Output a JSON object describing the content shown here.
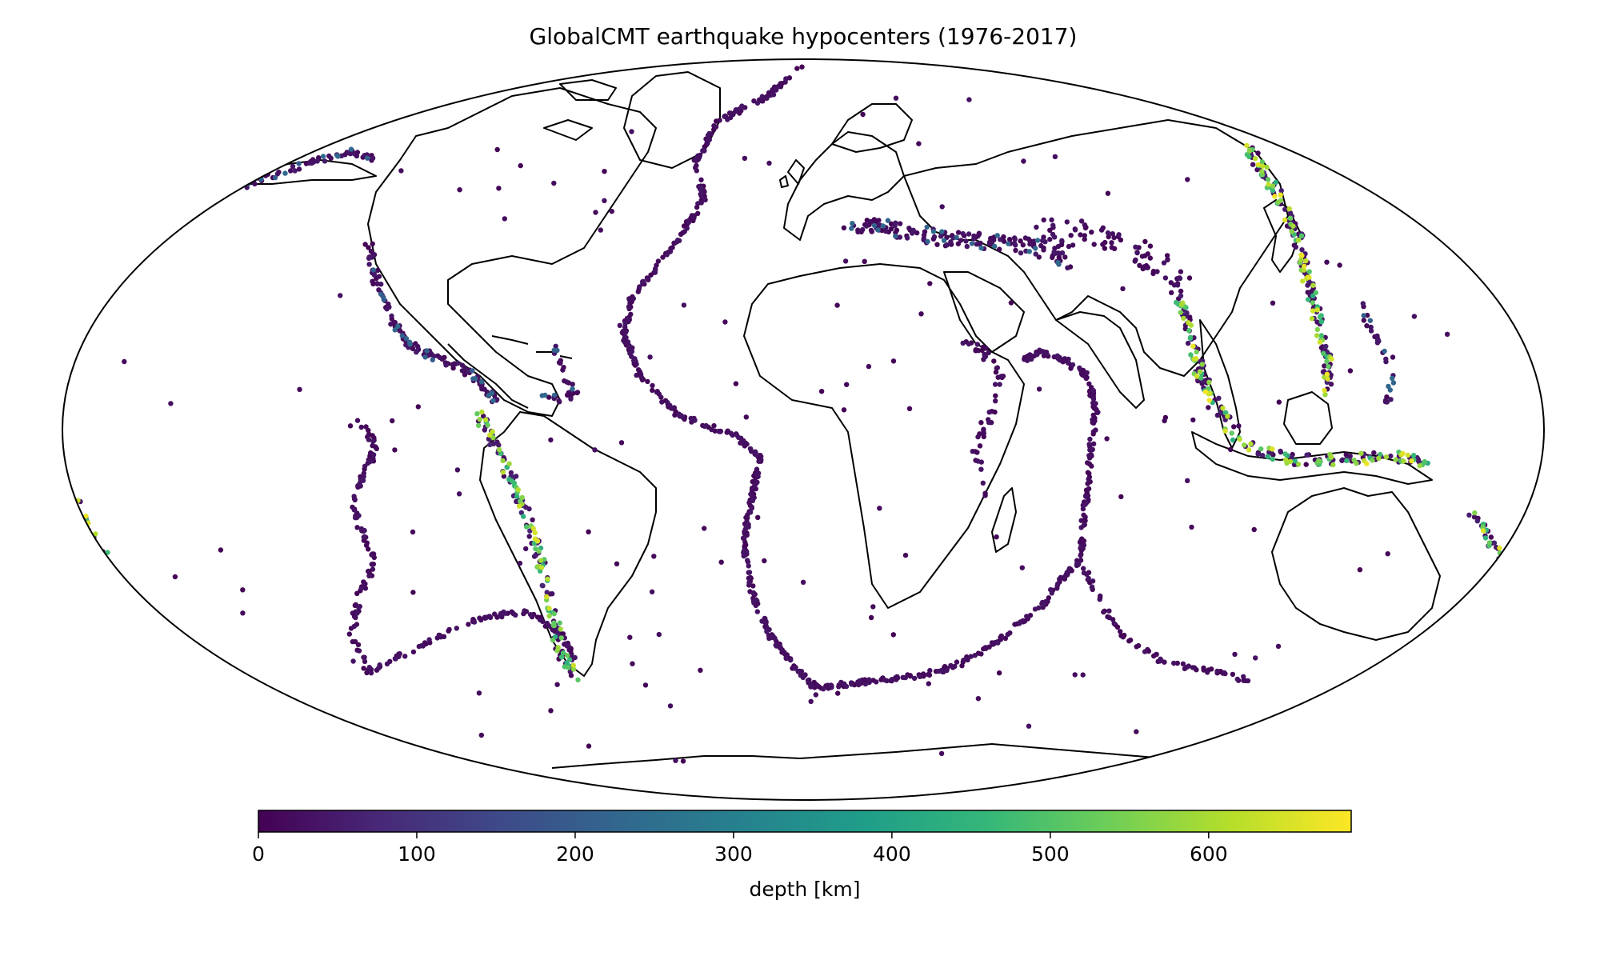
{
  "title": "GlobalCMT earthquake hypocenters (1976-2017)",
  "colors": {
    "coastline": "#000000",
    "colormap": "viridis",
    "viridis_stops": [
      "#440154",
      "#482878",
      "#3e4a89",
      "#31688e",
      "#26828e",
      "#1f9e89",
      "#35b779",
      "#6ece58",
      "#b5de2b",
      "#fde725"
    ]
  },
  "map": {
    "projection": "Mollweide",
    "features": [
      "coastlines",
      "earthquake hypocenters colored by depth"
    ]
  },
  "colorbar": {
    "label": "depth [km]",
    "range": [
      0,
      690
    ],
    "ticks": [
      {
        "value": 0,
        "label": "0"
      },
      {
        "value": 100,
        "label": "100"
      },
      {
        "value": 200,
        "label": "200"
      },
      {
        "value": 300,
        "label": "300"
      },
      {
        "value": 400,
        "label": "400"
      },
      {
        "value": 500,
        "label": "500"
      },
      {
        "value": 600,
        "label": "600"
      }
    ]
  }
}
